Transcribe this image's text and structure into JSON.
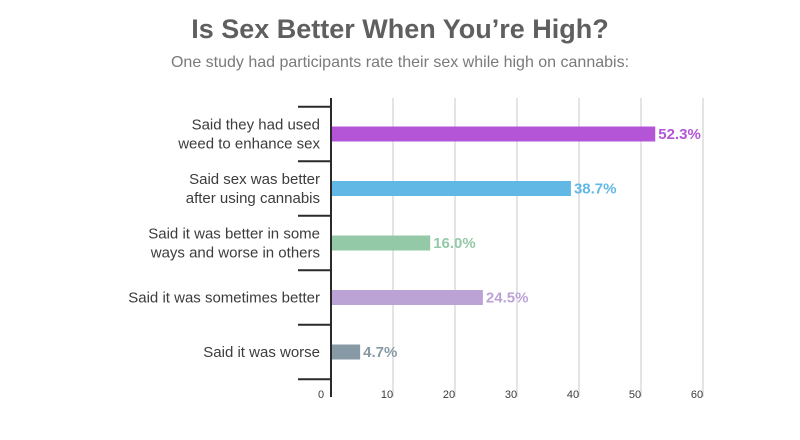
{
  "chart_data": {
    "type": "bar",
    "orientation": "horizontal",
    "title": "Is Sex Better When You’re High?",
    "subtitle": "One study had participants rate their sex while high on cannabis:",
    "categories": [
      [
        "Said they had used",
        "weed to enhance sex"
      ],
      [
        "Said sex was better",
        "after using cannabis"
      ],
      [
        "Said it was better in some",
        "ways and worse in others"
      ],
      [
        "Said it was sometimes better"
      ],
      [
        "Said it was worse"
      ]
    ],
    "values": [
      52.3,
      38.7,
      16.0,
      24.5,
      4.7
    ],
    "value_labels": [
      "52.3%",
      "38.7%",
      "16.0%",
      "24.5%",
      "4.7%"
    ],
    "colors": [
      "#b455d8",
      "#62b8e5",
      "#94c9a7",
      "#bba3d6",
      "#8799a5"
    ],
    "xlim": [
      0,
      60
    ],
    "xticks": [
      0,
      10,
      20,
      30,
      40,
      50,
      60
    ],
    "grid": true,
    "legend": "none"
  }
}
